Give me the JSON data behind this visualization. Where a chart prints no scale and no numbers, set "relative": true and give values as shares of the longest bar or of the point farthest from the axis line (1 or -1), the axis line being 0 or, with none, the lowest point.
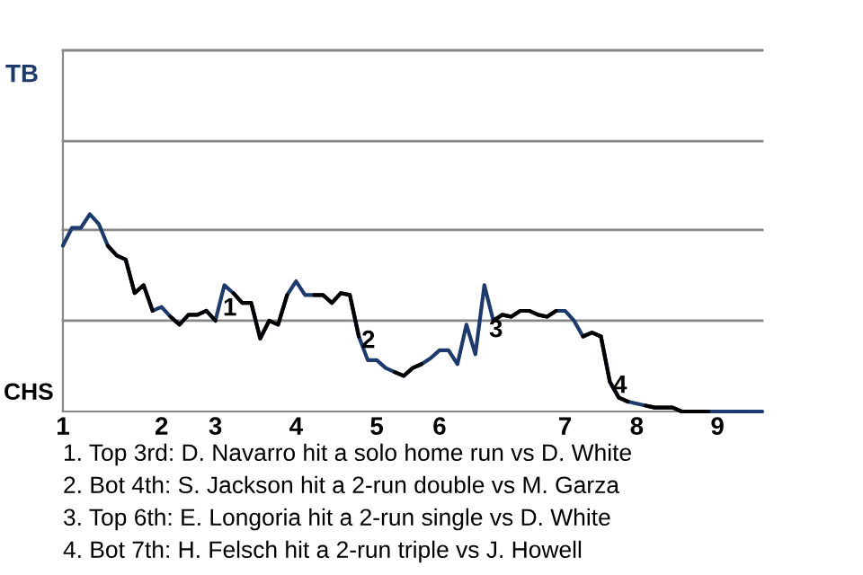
{
  "chart_data": {
    "type": "line",
    "relative": true,
    "categories": [
      "1",
      null,
      null,
      null,
      null,
      null,
      null,
      null,
      null,
      null,
      null,
      "2",
      null,
      null,
      null,
      null,
      null,
      "3",
      null,
      null,
      null,
      null,
      null,
      null,
      null,
      null,
      "4",
      null,
      null,
      null,
      null,
      null,
      null,
      null,
      null,
      "5",
      null,
      null,
      null,
      null,
      null,
      null,
      "6",
      null,
      null,
      null,
      null,
      null,
      null,
      null,
      null,
      null,
      null,
      null,
      null,
      null,
      "7",
      null,
      null,
      null,
      null,
      null,
      null,
      null,
      "8",
      null,
      null,
      null,
      null,
      null,
      null,
      null,
      null,
      "9",
      null,
      null,
      null,
      null,
      null
    ],
    "line_style": "solid",
    "ref_lines": [
      {
        "axis": "y",
        "value": 0.46,
        "color": "#888888"
      },
      {
        "axis": "y",
        "value": 0.92,
        "color": "#888888"
      },
      {
        "axis": "y",
        "value": 1.37,
        "color": "#888888"
      },
      {
        "axis": "y",
        "value": 1.83,
        "color": "#888888"
      }
    ],
    "series": [
      {
        "color": "#1c3a6e",
        "values": [
          0.84,
          0.93,
          0.93,
          1,
          0.95,
          0.84,
          0.79,
          0.77,
          0.6,
          0.64,
          0.51,
          0.53,
          0.48,
          0.44,
          0.49,
          0.49,
          0.51,
          0.46,
          0.64,
          0.6,
          0.55,
          0.55,
          0.37,
          0.46,
          0.44,
          0.59,
          0.66,
          0.59,
          0.59,
          0.59,
          0.55,
          0.6,
          0.59,
          0.38,
          0.26,
          0.26,
          0.22,
          0.2,
          0.18,
          0.22,
          0.24,
          0.27,
          0.31,
          0.31,
          0.24,
          0.44,
          0.29,
          0.64,
          0.46,
          0.49,
          0.48,
          0.51,
          0.51,
          0.49,
          0.48,
          0.51,
          0.51,
          0.46,
          0.38,
          0.4,
          0.38,
          0.15,
          0.07,
          0.05,
          0.04,
          0.03,
          0.02,
          0.02,
          0.02,
          0,
          0,
          0,
          0,
          0,
          0,
          0,
          0,
          0,
          0
        ]
      },
      {
        "color": "#000000",
        "values": [
          null,
          null,
          null,
          null,
          null,
          0.84,
          0.79,
          0.77,
          0.6,
          0.64,
          0.51,
          null,
          0.48,
          0.44,
          0.49,
          0.49,
          0.51,
          0.46,
          null,
          0.6,
          0.55,
          0.55,
          0.37,
          0.46,
          0.44,
          0.59,
          null,
          null,
          0.59,
          0.59,
          0.55,
          0.6,
          0.59,
          0.38,
          null,
          null,
          null,
          0.2,
          0.18,
          0.22,
          0.24,
          null,
          null,
          null,
          null,
          null,
          null,
          null,
          0.46,
          0.49,
          0.48,
          0.51,
          0.51,
          0.49,
          0.48,
          0.51,
          null,
          null,
          0.38,
          0.4,
          0.38,
          0.15,
          0.07,
          0.05,
          null,
          0.03,
          0.02,
          0.02,
          0.02,
          0,
          0,
          0,
          0,
          null,
          null,
          null,
          null,
          null,
          null
        ]
      }
    ],
    "annotations": [
      "1",
      "2",
      "3",
      "4",
      "TB",
      "CHS",
      "1. Top 3rd: D. Navarro hit a solo home run vs D. White",
      "2. Bot 4th: S. Jackson hit a 2-run double vs M. Garza",
      "3. Top 6th: E. Longoria hit a 2-run single vs D. White",
      "4. Bot 7th: H. Felsch hit a 2-run triple vs J. Howell"
    ]
  }
}
